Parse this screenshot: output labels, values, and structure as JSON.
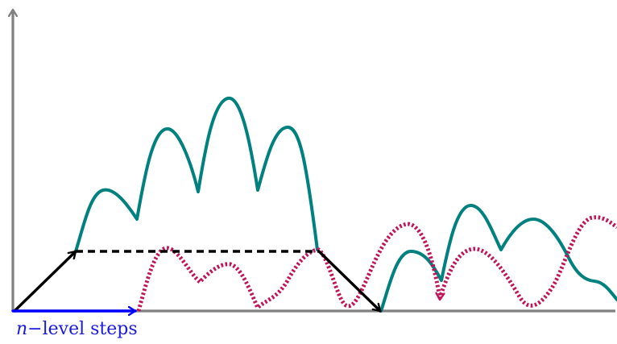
{
  "caption": {
    "variable": "n",
    "text": "−level steps"
  },
  "colors": {
    "axis": "#808080",
    "teal_path": "#00807f",
    "dotted_path": "#c0145a",
    "black_path": "#000000",
    "steps_arrow": "#0000ff",
    "caption": "#1a1adf"
  }
}
